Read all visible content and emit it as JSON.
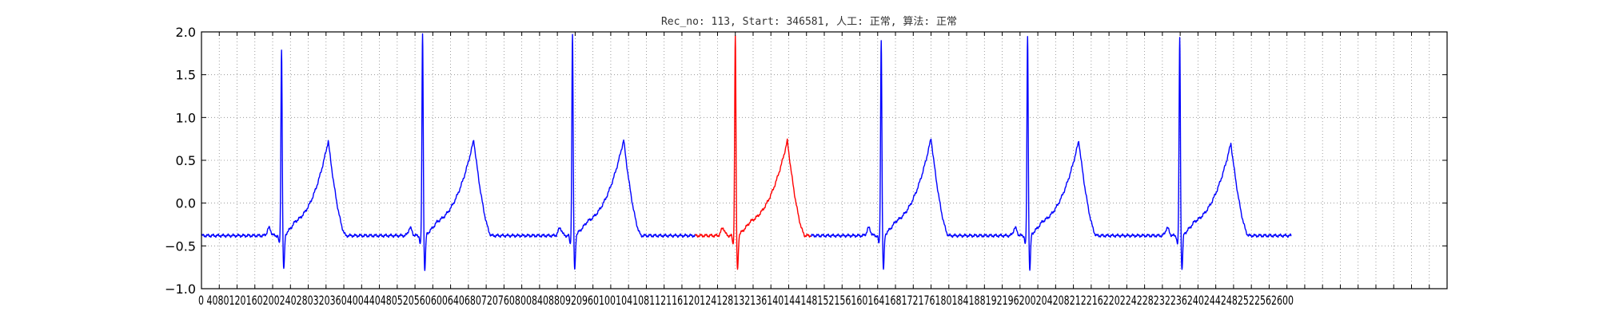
{
  "chart_data": {
    "type": "line",
    "title": "Rec_no: 113, Start: 346581, 人工: 正常, 算法: 正常",
    "xlabel": "",
    "ylabel": "",
    "xlim": [
      0,
      2800
    ],
    "ylim": [
      -1.0,
      2.0
    ],
    "grid": true,
    "grid_style": "dotted",
    "yticks": [
      {
        "value": -1.0,
        "label": "−1.0"
      },
      {
        "value": -0.5,
        "label": "−0.5"
      },
      {
        "value": 0.0,
        "label": "0.0"
      },
      {
        "value": 0.5,
        "label": "0.5"
      },
      {
        "value": 1.0,
        "label": "1.0"
      },
      {
        "value": 1.5,
        "label": "1.5"
      },
      {
        "value": 2.0,
        "label": "2.0"
      }
    ],
    "xtick_label_text": "0 40801201602002402803203604004404805205606006406807207608008408809209601001041081121161201241281321361401441481521561601641681721761801841881921962002042082122162202242282322362402442482522562600",
    "series": [
      {
        "segment": "before",
        "color": "#0000ff",
        "x_range": [
          0,
          1110
        ]
      },
      {
        "segment": "highlighted_beat",
        "color": "#ff0000",
        "x_range": [
          1110,
          1370
        ]
      },
      {
        "segment": "after",
        "color": "#0000ff",
        "x_range": [
          1370,
          2450
        ]
      }
    ],
    "beats": [
      {
        "r_peak_x": 180,
        "r_peak_y": 1.76,
        "t_peak_x": 285,
        "t_peak_y": 0.73
      },
      {
        "r_peak_x": 497,
        "r_peak_y": 1.93,
        "t_peak_x": 612,
        "t_peak_y": 0.74
      },
      {
        "r_peak_x": 834,
        "r_peak_y": 1.93,
        "t_peak_x": 949,
        "t_peak_y": 0.74
      },
      {
        "r_peak_x": 1200,
        "r_peak_y": 1.91,
        "t_peak_x": 1317,
        "t_peak_y": 0.73
      },
      {
        "r_peak_x": 1528,
        "r_peak_y": 1.86,
        "t_peak_x": 1640,
        "t_peak_y": 0.76
      },
      {
        "r_peak_x": 1857,
        "r_peak_y": 1.9,
        "t_peak_x": 1972,
        "t_peak_y": 0.73
      },
      {
        "r_peak_x": 2199,
        "r_peak_y": 1.89,
        "t_peak_x": 2314,
        "t_peak_y": 0.7
      }
    ],
    "baseline_y": -0.38,
    "colors": {
      "normal": "#0000ff",
      "highlight": "#ff0000",
      "grid": "#888888",
      "axes": "#000000"
    }
  }
}
